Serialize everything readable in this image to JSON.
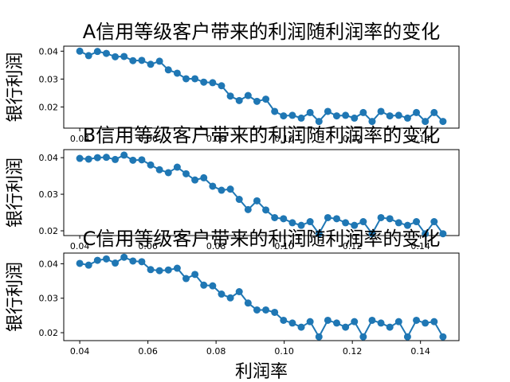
{
  "chart_data": [
    {
      "type": "line",
      "title": "A信用等级客户带来的利润随利润率的变化",
      "ylabel": "银行利润",
      "xlabel": "",
      "xlim": [
        0.0353,
        0.1513
      ],
      "ylim": [
        0.0124,
        0.0418
      ],
      "xticks": [
        "0.04",
        "0.06",
        "0.08",
        "0.10",
        "0.12",
        "0.14"
      ],
      "yticks": [
        "0.02",
        "0.03",
        "0.04"
      ],
      "color": "#1f77b4",
      "series": [
        {
          "x": [
            0.04,
            0.0426,
            0.0452,
            0.0478,
            0.0504,
            0.053,
            0.0556,
            0.0582,
            0.0608,
            0.0634,
            0.066,
            0.0686,
            0.0712,
            0.0738,
            0.0764,
            0.079,
            0.0816,
            0.0842,
            0.0868,
            0.0894,
            0.092,
            0.0946,
            0.0972,
            0.0998,
            0.1024,
            0.105,
            0.1076,
            0.1102,
            0.1128,
            0.1154,
            0.118,
            0.1206,
            0.1232,
            0.1258,
            0.1284,
            0.131,
            0.1336,
            0.1362,
            0.1388,
            0.1414,
            0.144,
            0.1466
          ],
          "values": [
            0.04,
            0.0384,
            0.0399,
            0.0392,
            0.038,
            0.0381,
            0.0366,
            0.0367,
            0.0353,
            0.0364,
            0.0333,
            0.0321,
            0.0301,
            0.0301,
            0.0289,
            0.0287,
            0.0276,
            0.0239,
            0.0223,
            0.0241,
            0.022,
            0.0228,
            0.0184,
            0.0168,
            0.017,
            0.016,
            0.018,
            0.0148,
            0.0184,
            0.0168,
            0.017,
            0.016,
            0.018,
            0.0148,
            0.0184,
            0.0168,
            0.017,
            0.016,
            0.018,
            0.0148,
            0.018,
            0.0148
          ]
        }
      ]
    },
    {
      "type": "line",
      "title": "B信用等级客户带来的利润随利润率的变化",
      "ylabel": "银行利润",
      "xlabel": "",
      "xlim": [
        0.0353,
        0.1513
      ],
      "ylim": [
        0.0187,
        0.0422
      ],
      "xticks": [
        "0.04",
        "0.06",
        "0.08",
        "0.10",
        "0.12",
        "0.14"
      ],
      "yticks": [
        "0.02",
        "0.03",
        "0.04"
      ],
      "color": "#1f77b4",
      "series": [
        {
          "x": [
            0.04,
            0.0426,
            0.0452,
            0.0478,
            0.0504,
            0.053,
            0.0556,
            0.0582,
            0.0608,
            0.0634,
            0.066,
            0.0686,
            0.0712,
            0.0738,
            0.0764,
            0.079,
            0.0816,
            0.0842,
            0.0868,
            0.0894,
            0.092,
            0.0946,
            0.0972,
            0.0998,
            0.1024,
            0.105,
            0.1076,
            0.1102,
            0.1128,
            0.1154,
            0.118,
            0.1206,
            0.1232,
            0.1258,
            0.1284,
            0.131,
            0.1336,
            0.1362,
            0.1388,
            0.1414,
            0.144,
            0.1466
          ],
          "values": [
            0.0398,
            0.0396,
            0.04,
            0.0401,
            0.0395,
            0.0407,
            0.0393,
            0.0394,
            0.038,
            0.0367,
            0.0359,
            0.0374,
            0.0356,
            0.0339,
            0.0345,
            0.0322,
            0.0311,
            0.0314,
            0.0286,
            0.0258,
            0.0282,
            0.0257,
            0.0236,
            0.0233,
            0.0222,
            0.0215,
            0.0225,
            0.0192,
            0.0236,
            0.0233,
            0.0222,
            0.0215,
            0.0225,
            0.0192,
            0.0236,
            0.0233,
            0.0222,
            0.0215,
            0.0225,
            0.0192,
            0.0225,
            0.0192
          ]
        }
      ]
    },
    {
      "type": "line",
      "title": "C信用等级客户带来的利润随利润率的变化",
      "ylabel": "银行利润",
      "xlabel": "利润率",
      "xlim": [
        0.0353,
        0.1513
      ],
      "ylim": [
        0.0177,
        0.0431
      ],
      "xticks": [
        "0.04",
        "0.06",
        "0.08",
        "0.10",
        "0.12",
        "0.14"
      ],
      "yticks": [
        "0.02",
        "0.03",
        "0.04"
      ],
      "color": "#1f77b4",
      "series": [
        {
          "x": [
            0.04,
            0.0426,
            0.0452,
            0.0478,
            0.0504,
            0.053,
            0.0556,
            0.0582,
            0.0608,
            0.0634,
            0.066,
            0.0686,
            0.0712,
            0.0738,
            0.0764,
            0.079,
            0.0816,
            0.0842,
            0.0868,
            0.0894,
            0.092,
            0.0946,
            0.0972,
            0.0998,
            0.1024,
            0.105,
            0.1076,
            0.1102,
            0.1128,
            0.1154,
            0.118,
            0.1206,
            0.1232,
            0.1258,
            0.1284,
            0.131,
            0.1336,
            0.1362,
            0.1388,
            0.1414,
            0.144,
            0.1466
          ],
          "values": [
            0.0401,
            0.0396,
            0.041,
            0.0414,
            0.0402,
            0.0419,
            0.0408,
            0.0406,
            0.0383,
            0.038,
            0.0382,
            0.0387,
            0.0357,
            0.0369,
            0.0338,
            0.0336,
            0.0312,
            0.0301,
            0.0319,
            0.0286,
            0.0266,
            0.0266,
            0.0259,
            0.0236,
            0.0228,
            0.0216,
            0.0232,
            0.0188,
            0.0236,
            0.0228,
            0.0216,
            0.0232,
            0.0188,
            0.0236,
            0.0228,
            0.0216,
            0.0232,
            0.0188,
            0.0236,
            0.0228,
            0.0232,
            0.0188
          ]
        }
      ]
    }
  ]
}
